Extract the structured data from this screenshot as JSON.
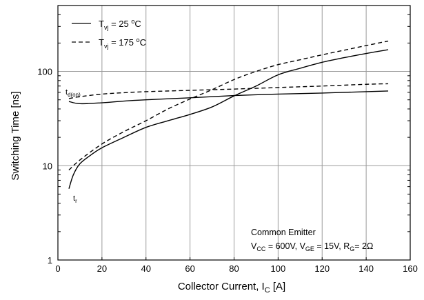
{
  "chart_data": {
    "type": "line",
    "title": "",
    "xlabel": {
      "main": "Collector Current, I",
      "sub": "C",
      "unit": " [A]"
    },
    "ylabel": "Switching Time [ns]",
    "x_scale": "linear",
    "y_scale": "log",
    "xlim": [
      0,
      160
    ],
    "ylim": [
      1,
      500
    ],
    "grid": true,
    "x_ticks": [
      0,
      20,
      40,
      60,
      80,
      100,
      120,
      140,
      160
    ],
    "y_ticks": [
      1,
      10,
      100
    ],
    "legend_position": "top-left",
    "legend": [
      {
        "main": "T",
        "sub": "vj",
        "rest": " = 25 ",
        "sup": "o",
        "end": "C",
        "style": "solid"
      },
      {
        "main": "T",
        "sub": "vj",
        "rest": " = 175 ",
        "sup": "o",
        "end": "C",
        "style": "dashed"
      }
    ],
    "annotations": [
      {
        "main": "t",
        "sub": "d(on)"
      },
      {
        "main": "t",
        "sub": "r"
      }
    ],
    "conditions": {
      "line1": "Common Emitter",
      "line2": [
        {
          "t": "V"
        },
        {
          "t": "CC",
          "sub": true
        },
        {
          "t": " = 600V, V"
        },
        {
          "t": "GE",
          "sub": true
        },
        {
          "t": " = 15V, R"
        },
        {
          "t": "G",
          "sub": true
        },
        {
          "t": "= 2Ω"
        }
      ]
    },
    "series": [
      {
        "name": "td(on), Tvj = 25 °C",
        "style": "solid",
        "points": [
          [
            5,
            48
          ],
          [
            10,
            45.5
          ],
          [
            20,
            46.5
          ],
          [
            30,
            48.5
          ],
          [
            40,
            50
          ],
          [
            60,
            52.5
          ],
          [
            80,
            55.5
          ],
          [
            100,
            57.5
          ],
          [
            120,
            59
          ],
          [
            140,
            61
          ],
          [
            150,
            62
          ]
        ]
      },
      {
        "name": "td(on), Tvj = 175 °C",
        "style": "dashed",
        "points": [
          [
            5,
            51.5
          ],
          [
            10,
            54
          ],
          [
            20,
            57.5
          ],
          [
            30,
            59.5
          ],
          [
            40,
            61
          ],
          [
            60,
            63
          ],
          [
            80,
            65
          ],
          [
            100,
            67.5
          ],
          [
            120,
            70
          ],
          [
            140,
            73
          ],
          [
            150,
            74
          ]
        ]
      },
      {
        "name": "tr, Tvj = 25 °C",
        "style": "solid",
        "points": [
          [
            5,
            5.7
          ],
          [
            7,
            8
          ],
          [
            10,
            10.5
          ],
          [
            15,
            13
          ],
          [
            20,
            15.5
          ],
          [
            30,
            20
          ],
          [
            40,
            25.5
          ],
          [
            50,
            30
          ],
          [
            60,
            35
          ],
          [
            70,
            42
          ],
          [
            80,
            55
          ],
          [
            90,
            70
          ],
          [
            100,
            92
          ],
          [
            110,
            108
          ],
          [
            120,
            125
          ],
          [
            130,
            140
          ],
          [
            140,
            155
          ],
          [
            150,
            170
          ]
        ]
      },
      {
        "name": "tr, Tvj = 175 °C",
        "style": "dashed",
        "points": [
          [
            5,
            9
          ],
          [
            10,
            11.5
          ],
          [
            20,
            17
          ],
          [
            30,
            23
          ],
          [
            40,
            30
          ],
          [
            50,
            40
          ],
          [
            60,
            51
          ],
          [
            70,
            64
          ],
          [
            80,
            82
          ],
          [
            90,
            100
          ],
          [
            100,
            118
          ],
          [
            110,
            133
          ],
          [
            120,
            150
          ],
          [
            130,
            168
          ],
          [
            140,
            188
          ],
          [
            150,
            210
          ]
        ]
      }
    ]
  }
}
